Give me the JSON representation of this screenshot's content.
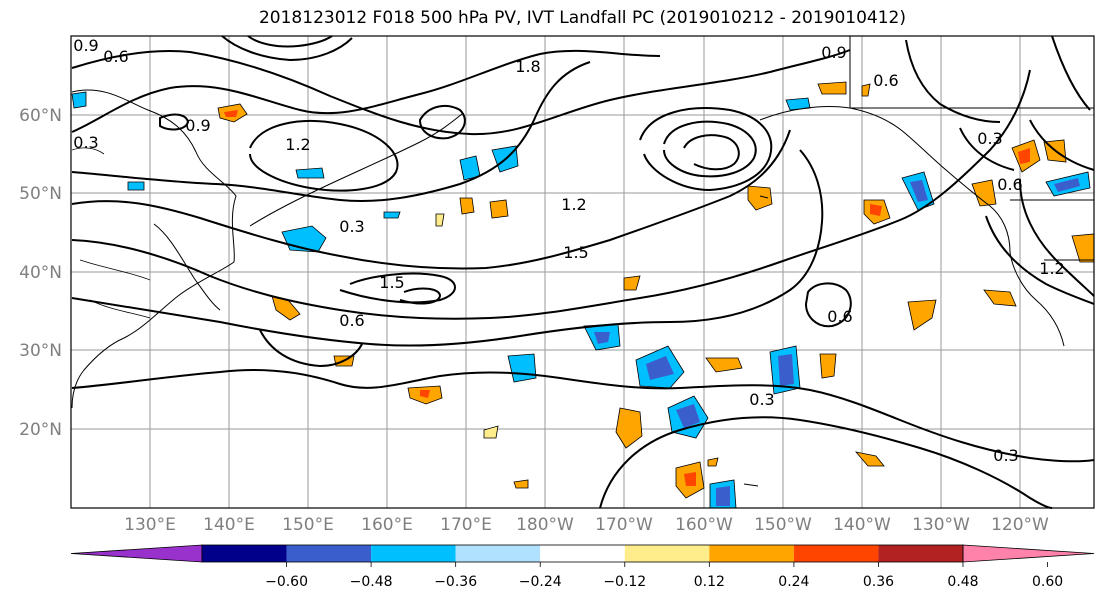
{
  "title": "2018123012 F018 500 hPa PV, IVT Landfall PC (2019010212 - 2019010412)",
  "map": {
    "lat_labels": [
      "60°N",
      "50°N",
      "40°N",
      "30°N",
      "20°N"
    ],
    "lon_labels": [
      "130°E",
      "140°E",
      "150°E",
      "160°E",
      "170°E",
      "180°W",
      "170°W",
      "160°W",
      "150°W",
      "140°W",
      "130°W",
      "120°W"
    ],
    "contour_labels": [
      "0.9",
      "0.6",
      "0.3",
      "1.2",
      "1.5",
      "1.8",
      "0.6",
      "0.3",
      "1.2",
      "1.5",
      "0.9",
      "0.6",
      "0.3",
      "0.6",
      "0.3",
      "0.3",
      "1.2",
      "0.6",
      "0.9"
    ]
  },
  "colorbar": {
    "ticks": [
      "−0.60",
      "−0.48",
      "−0.36",
      "−0.24",
      "−0.12",
      "0.12",
      "0.24",
      "0.36",
      "0.48",
      "0.60"
    ],
    "colors": [
      "#9932cc",
      "#00008b",
      "#3a5fcd",
      "#00bfff",
      "#b0e2ff",
      "#ffffff",
      "#ffec8b",
      "#ffa500",
      "#ff4500",
      "#b22222",
      "#ff82ab"
    ]
  }
}
